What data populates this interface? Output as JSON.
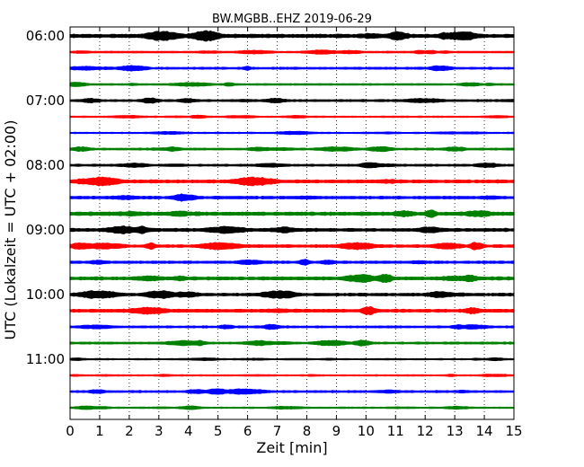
{
  "chart_data": {
    "type": "line",
    "title": "BW.MGBB..EHZ 2019-06-29",
    "xlabel": "Zeit  [min]",
    "ylabel": "UTC (Lokalzeit = UTC + 02:00)",
    "xlim": [
      0,
      15
    ],
    "x_ticks": [
      "0",
      "1",
      "2",
      "3",
      "4",
      "5",
      "6",
      "7",
      "8",
      "9",
      "10",
      "11",
      "12",
      "13",
      "14",
      "15"
    ],
    "y_ticks": [
      "06:00",
      "07:00",
      "08:00",
      "09:00",
      "10:00",
      "11:00"
    ],
    "trace_interval_min": 15,
    "grid": "vertical-dotted",
    "colors": [
      "#000000",
      "#ff0000",
      "#0000ff",
      "#008000"
    ],
    "rows": [
      {
        "start": "06:00",
        "amplitude": 0.9
      },
      {
        "start": "06:15",
        "amplitude": 0.4
      },
      {
        "start": "06:30",
        "amplitude": 0.5
      },
      {
        "start": "06:45",
        "amplitude": 0.4
      },
      {
        "start": "07:00",
        "amplitude": 0.5
      },
      {
        "start": "07:15",
        "amplitude": 0.3
      },
      {
        "start": "07:30",
        "amplitude": 0.3
      },
      {
        "start": "07:45",
        "amplitude": 0.5
      },
      {
        "start": "08:00",
        "amplitude": 0.5
      },
      {
        "start": "08:15",
        "amplitude": 0.8
      },
      {
        "start": "08:30",
        "amplitude": 0.7
      },
      {
        "start": "08:45",
        "amplitude": 0.9
      },
      {
        "start": "09:00",
        "amplitude": 0.8
      },
      {
        "start": "09:15",
        "amplitude": 0.7
      },
      {
        "start": "09:30",
        "amplitude": 0.6
      },
      {
        "start": "09:45",
        "amplitude": 0.8
      },
      {
        "start": "10:00",
        "amplitude": 0.7
      },
      {
        "start": "10:15",
        "amplitude": 0.8
      },
      {
        "start": "10:30",
        "amplitude": 0.5
      },
      {
        "start": "10:45",
        "amplitude": 0.5
      },
      {
        "start": "11:00",
        "amplitude": 0.3
      },
      {
        "start": "11:15",
        "amplitude": 0.3
      },
      {
        "start": "11:30",
        "amplitude": 0.5
      },
      {
        "start": "11:45",
        "amplitude": 0.3
      }
    ]
  }
}
